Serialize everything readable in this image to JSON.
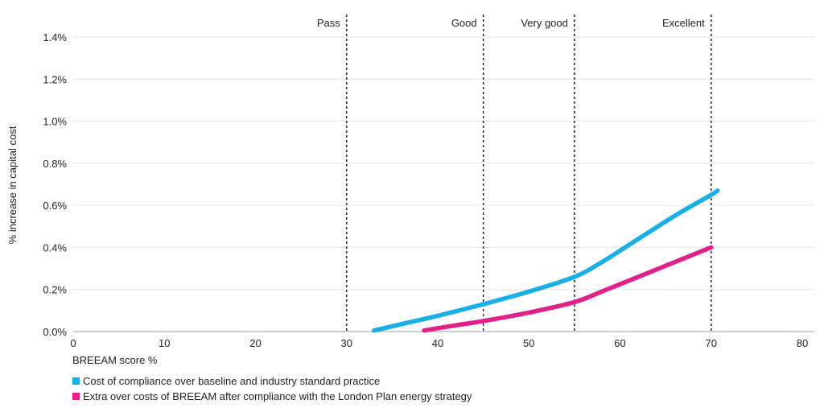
{
  "chart_data": {
    "type": "line",
    "xlabel": "BREEAM score %",
    "ylabel": "% increase in capital cost",
    "xlim": [
      0,
      80
    ],
    "ylim": [
      0,
      1.4
    ],
    "x_ticks": [
      0,
      10,
      20,
      30,
      40,
      50,
      60,
      70,
      80
    ],
    "y_ticks": [
      0.0,
      0.2,
      0.4,
      0.6,
      0.8,
      1.0,
      1.2,
      1.4
    ],
    "y_tick_labels": [
      "0.0%",
      "0.2%",
      "0.4%",
      "0.6%",
      "0.8%",
      "1.0%",
      "1.2%",
      "1.4%"
    ],
    "grid": "horizontal",
    "thresholds": [
      {
        "label": "Pass",
        "x": 30
      },
      {
        "label": "Good",
        "x": 45
      },
      {
        "label": "Very good",
        "x": 55
      },
      {
        "label": "Excellent",
        "x": 70
      }
    ],
    "series": [
      {
        "name": "Cost of compliance over baseline and industry standard practice",
        "color": "#1aaee6",
        "x": [
          33,
          36,
          40,
          45,
          50,
          55,
          58,
          62,
          66,
          70,
          70.7
        ],
        "y": [
          0.005,
          0.035,
          0.075,
          0.13,
          0.19,
          0.26,
          0.33,
          0.44,
          0.55,
          0.65,
          0.67
        ]
      },
      {
        "name": "Extra over costs of BREEAM after compliance with the London Plan energy strategy",
        "color": "#e0218a",
        "x": [
          38.5,
          42,
          45,
          50,
          55,
          58,
          62,
          66,
          70
        ],
        "y": [
          0.005,
          0.03,
          0.05,
          0.09,
          0.14,
          0.19,
          0.26,
          0.33,
          0.4
        ]
      }
    ],
    "legend_position": "bottom-left"
  }
}
